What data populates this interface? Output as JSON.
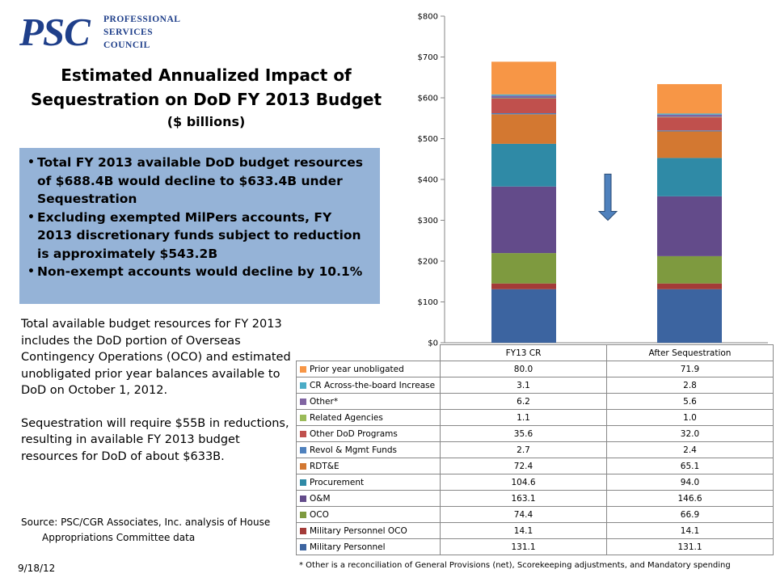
{
  "logo": {
    "mark": "PSC",
    "line1": "PROFESSIONAL",
    "line2": "SERVICES",
    "line3": "COUNCIL"
  },
  "title": {
    "line1": "Estimated Annualized Impact of",
    "line2": "Sequestration on DoD FY 2013 Budget",
    "line3": "($ billions)"
  },
  "bullets": [
    "Total FY 2013 available DoD budget resources of $688.4B would decline to $633.4B under Sequestration",
    "Excluding exempted MilPers accounts, FY 2013 discretionary funds subject to reduction is approximately $543.2B",
    "Non-exempt accounts would decline by 10.1%"
  ],
  "notes": {
    "p1": "Total available budget resources for FY 2013 includes the DoD portion of Overseas Contingency Operations (OCO) and estimated unobligated prior year balances available to DoD on October 1, 2012.",
    "p2": "Sequestration will require $55B in reductions, resulting in available FY 2013 budget resources for DoD of about $633B."
  },
  "source": {
    "line1": "Source: PSC/CGR Associates, Inc. analysis of House",
    "line2": "Appropriations Committee data"
  },
  "date": "9/18/12",
  "footnote": "* Other is a reconciliation of General Provisions (net), Scorekeeping adjustments, and Mandatory spending",
  "chart_data": {
    "type": "bar",
    "stacked": true,
    "categories": [
      "FY13 CR",
      "After Sequestration"
    ],
    "ylim": [
      0,
      800
    ],
    "yticks": [
      "$0",
      "$100",
      "$200",
      "$300",
      "$400",
      "$500",
      "$600",
      "$700",
      "$800"
    ],
    "ytick_values": [
      0,
      100,
      200,
      300,
      400,
      500,
      600,
      700,
      800
    ],
    "grid": false,
    "legend": "table below chart",
    "annotation": "down arrow between bars",
    "series": [
      {
        "name": "Military Personnel",
        "color": "#3c64a0",
        "values": [
          131.1,
          131.1
        ]
      },
      {
        "name": "Military Personnel OCO",
        "color": "#a33b38",
        "values": [
          14.1,
          14.1
        ]
      },
      {
        "name": "OCO",
        "color": "#7e9a3f",
        "values": [
          74.4,
          66.9
        ]
      },
      {
        "name": "O&M",
        "color": "#634b8a",
        "values": [
          163.1,
          146.6
        ]
      },
      {
        "name": "Procurement",
        "color": "#2f8aa6",
        "values": [
          104.6,
          94.0
        ]
      },
      {
        "name": "RDT&E",
        "color": "#d37831",
        "values": [
          72.4,
          65.1
        ]
      },
      {
        "name": "Revol & Mgmt Funds",
        "color": "#4f81bd",
        "values": [
          2.7,
          2.4
        ]
      },
      {
        "name": "Other DoD Programs",
        "color": "#c0504d",
        "values": [
          35.6,
          32.0
        ]
      },
      {
        "name": "Related Agencies",
        "color": "#9bbb59",
        "values": [
          1.1,
          1.0
        ]
      },
      {
        "name": "Other*",
        "color": "#8064a2",
        "values": [
          6.2,
          5.6
        ]
      },
      {
        "name": "CR Across-the-board Increase",
        "color": "#4bacc6",
        "values": [
          3.1,
          2.8
        ]
      },
      {
        "name": "Prior year unobligated",
        "color": "#f79646",
        "values": [
          80.0,
          71.9
        ]
      }
    ],
    "table_values": [
      [
        "80.0",
        "71.9"
      ],
      [
        "3.1",
        "2.8"
      ],
      [
        "6.2",
        "5.6"
      ],
      [
        "1.1",
        "1.0"
      ],
      [
        "35.6",
        "32.0"
      ],
      [
        "2.7",
        "2.4"
      ],
      [
        "72.4",
        "65.1"
      ],
      [
        "104.6",
        "94.0"
      ],
      [
        "163.1",
        "146.6"
      ],
      [
        "74.4",
        "66.9"
      ],
      [
        "14.1",
        "14.1"
      ],
      [
        "131.1",
        "131.1"
      ]
    ]
  }
}
